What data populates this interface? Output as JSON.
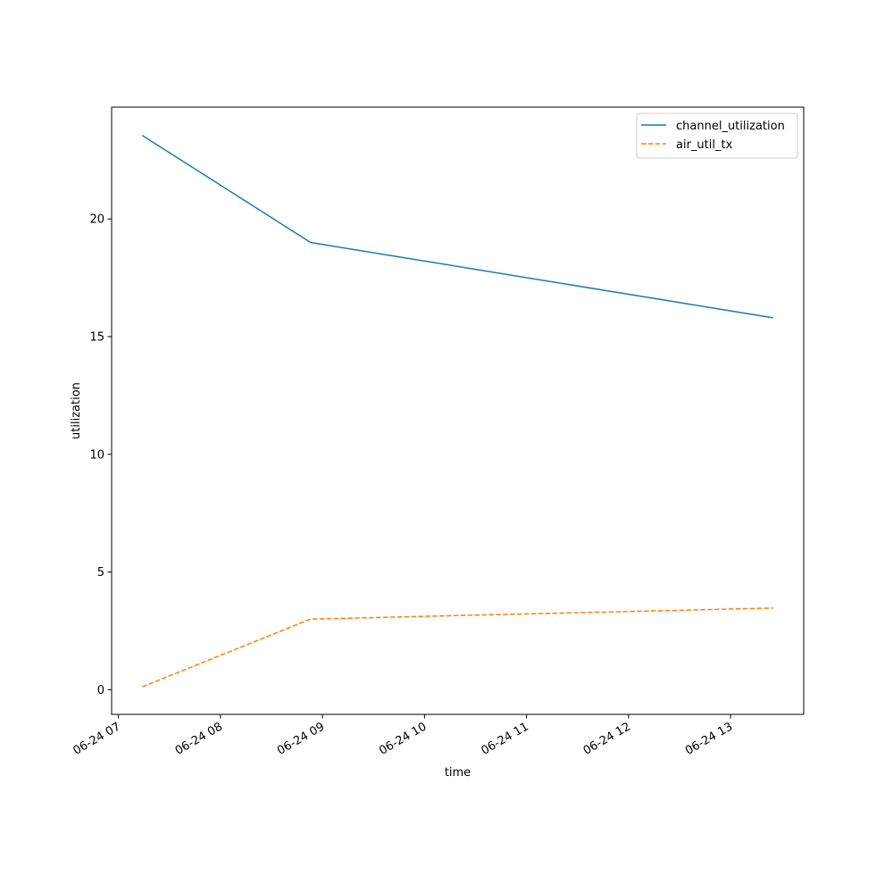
{
  "chart_data": {
    "type": "line",
    "xlabel": "time",
    "ylabel": "utilization",
    "x_axis_type": "datetime",
    "xlim": [
      "2024-06-24 06:56",
      "2024-06-24 13:43"
    ],
    "ylim": [
      -1.05,
      24.75
    ],
    "x_ticks": [
      "2024-06-24 07:00",
      "2024-06-24 08:00",
      "2024-06-24 09:00",
      "2024-06-24 10:00",
      "2024-06-24 11:00",
      "2024-06-24 12:00",
      "2024-06-24 13:00"
    ],
    "x_tick_labels": [
      "06-24 07",
      "06-24 08",
      "06-24 09",
      "06-24 10",
      "06-24 11",
      "06-24 12",
      "06-24 13"
    ],
    "y_ticks": [
      0,
      5,
      10,
      15,
      20
    ],
    "y_tick_labels": [
      "0",
      "5",
      "10",
      "15",
      "20"
    ],
    "grid": false,
    "legend_position": "top-right",
    "series": [
      {
        "name": "channel_utilization",
        "color": "#1f77b4",
        "style": "solid",
        "x": [
          "2024-06-24 07:14",
          "2024-06-24 08:53",
          "2024-06-24 13:25"
        ],
        "y": [
          23.55,
          19.0,
          15.8
        ]
      },
      {
        "name": "air_util_tx",
        "color": "#ff7f0e",
        "style": "dashed",
        "x": [
          "2024-06-24 07:14",
          "2024-06-24 08:53",
          "2024-06-24 13:25"
        ],
        "y": [
          0.12,
          3.0,
          3.47
        ]
      }
    ]
  }
}
